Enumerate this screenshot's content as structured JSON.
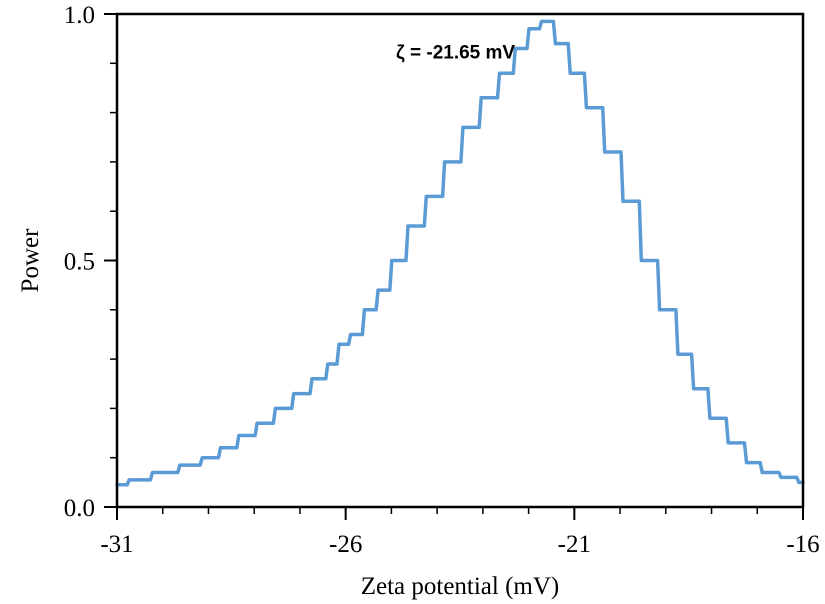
{
  "chart_data": {
    "type": "line",
    "title": "",
    "xlabel": "Zeta potential (mV)",
    "ylabel": "Power",
    "xlim": [
      -31,
      -16
    ],
    "ylim": [
      0.0,
      1.0
    ],
    "x_ticks": [
      -31,
      -26,
      -21,
      -16
    ],
    "x_tick_labels": [
      "-31",
      "-26",
      "-21",
      "-16"
    ],
    "y_ticks": [
      0.0,
      0.5,
      1.0
    ],
    "y_tick_labels": [
      "0.0",
      "0.5",
      "1.0"
    ],
    "annotation": "ζ = -21.65 mV",
    "grid": false,
    "legend": "none",
    "series": [
      {
        "color": "#5B9BD5",
        "x": [
          -31.0,
          -30.6,
          -30.0,
          -29.4,
          -29.0,
          -28.6,
          -28.2,
          -27.8,
          -27.4,
          -27.0,
          -26.6,
          -26.3,
          -26.1,
          -25.8,
          -25.5,
          -25.2,
          -24.9,
          -24.5,
          -24.1,
          -23.7,
          -23.3,
          -22.9,
          -22.5,
          -22.2,
          -21.9,
          -21.65,
          -21.3,
          -21.0,
          -20.6,
          -20.2,
          -19.8,
          -19.4,
          -19.0,
          -18.6,
          -18.3,
          -17.9,
          -17.5,
          -17.1,
          -16.8,
          -16.3,
          -16.0
        ],
        "y": [
          0.045,
          0.055,
          0.07,
          0.085,
          0.1,
          0.12,
          0.145,
          0.17,
          0.2,
          0.23,
          0.26,
          0.29,
          0.33,
          0.35,
          0.4,
          0.44,
          0.5,
          0.57,
          0.63,
          0.7,
          0.77,
          0.83,
          0.88,
          0.93,
          0.97,
          0.985,
          0.94,
          0.88,
          0.81,
          0.72,
          0.62,
          0.5,
          0.4,
          0.31,
          0.24,
          0.18,
          0.13,
          0.09,
          0.07,
          0.06,
          0.05
        ]
      }
    ]
  }
}
